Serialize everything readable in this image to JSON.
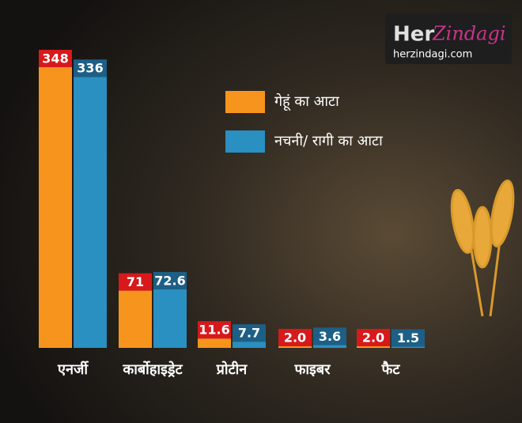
{
  "chart_data": {
    "type": "bar",
    "categories": [
      "एनर्जी",
      "कार्बोहाइड्रेट",
      "प्रोटीन",
      "फाइबर",
      "फैट"
    ],
    "series": [
      {
        "name": "गेहूं का आटा",
        "color": "#f7941d",
        "label_color": "#d7191c",
        "values": [
          348,
          71,
          11.6,
          2,
          2
        ],
        "value_labels": [
          "348",
          "71",
          "11.6",
          "2.0",
          "2.0"
        ]
      },
      {
        "name": "नचनी/ रागी का आटा",
        "color": "#2a8fc1",
        "label_color": "#1d5f86",
        "values": [
          336,
          72.6,
          7.7,
          3.6,
          1.5
        ]
      }
    ],
    "logo": {
      "brand": "Her",
      "brand_script": "Zindagi",
      "site": "herzindagi.com"
    }
  }
}
